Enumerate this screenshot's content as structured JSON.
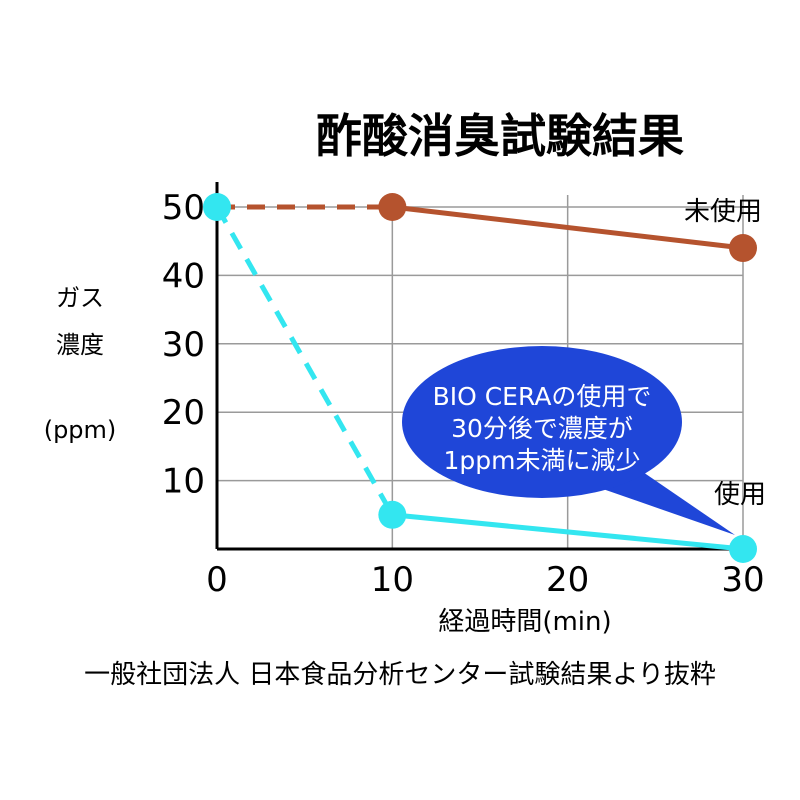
{
  "chart_data": {
    "type": "line",
    "title": "酢酸消臭試験結果",
    "ylabel_lines": [
      "ガス",
      "濃度",
      "(ppm)"
    ],
    "xlabel": "経過時間(min)",
    "x_ticks": [
      0,
      10,
      20,
      30
    ],
    "y_ticks": [
      10,
      20,
      30,
      40,
      50
    ],
    "xlim": [
      0,
      30
    ],
    "ylim": [
      0,
      50
    ],
    "grid": true,
    "series": [
      {
        "name": "未使用",
        "color": "#b5532e",
        "points": [
          {
            "x": 0,
            "y": 50
          },
          {
            "x": 10,
            "y": 50
          },
          {
            "x": 30,
            "y": 44
          }
        ],
        "dashed_first_segment": true
      },
      {
        "name": "使用",
        "color": "#33e6f0",
        "points": [
          {
            "x": 0,
            "y": 50
          },
          {
            "x": 10,
            "y": 5
          },
          {
            "x": 30,
            "y": 0
          }
        ],
        "dashed_first_segment": true
      }
    ],
    "callout": {
      "lines": [
        "BIO CERAの使用で",
        "30分後で濃度が",
        "1ppm未満に減少"
      ],
      "color": "#1f46d8"
    },
    "source_note": "一般社団法人 日本食品分析センター試験結果より抜粋"
  }
}
